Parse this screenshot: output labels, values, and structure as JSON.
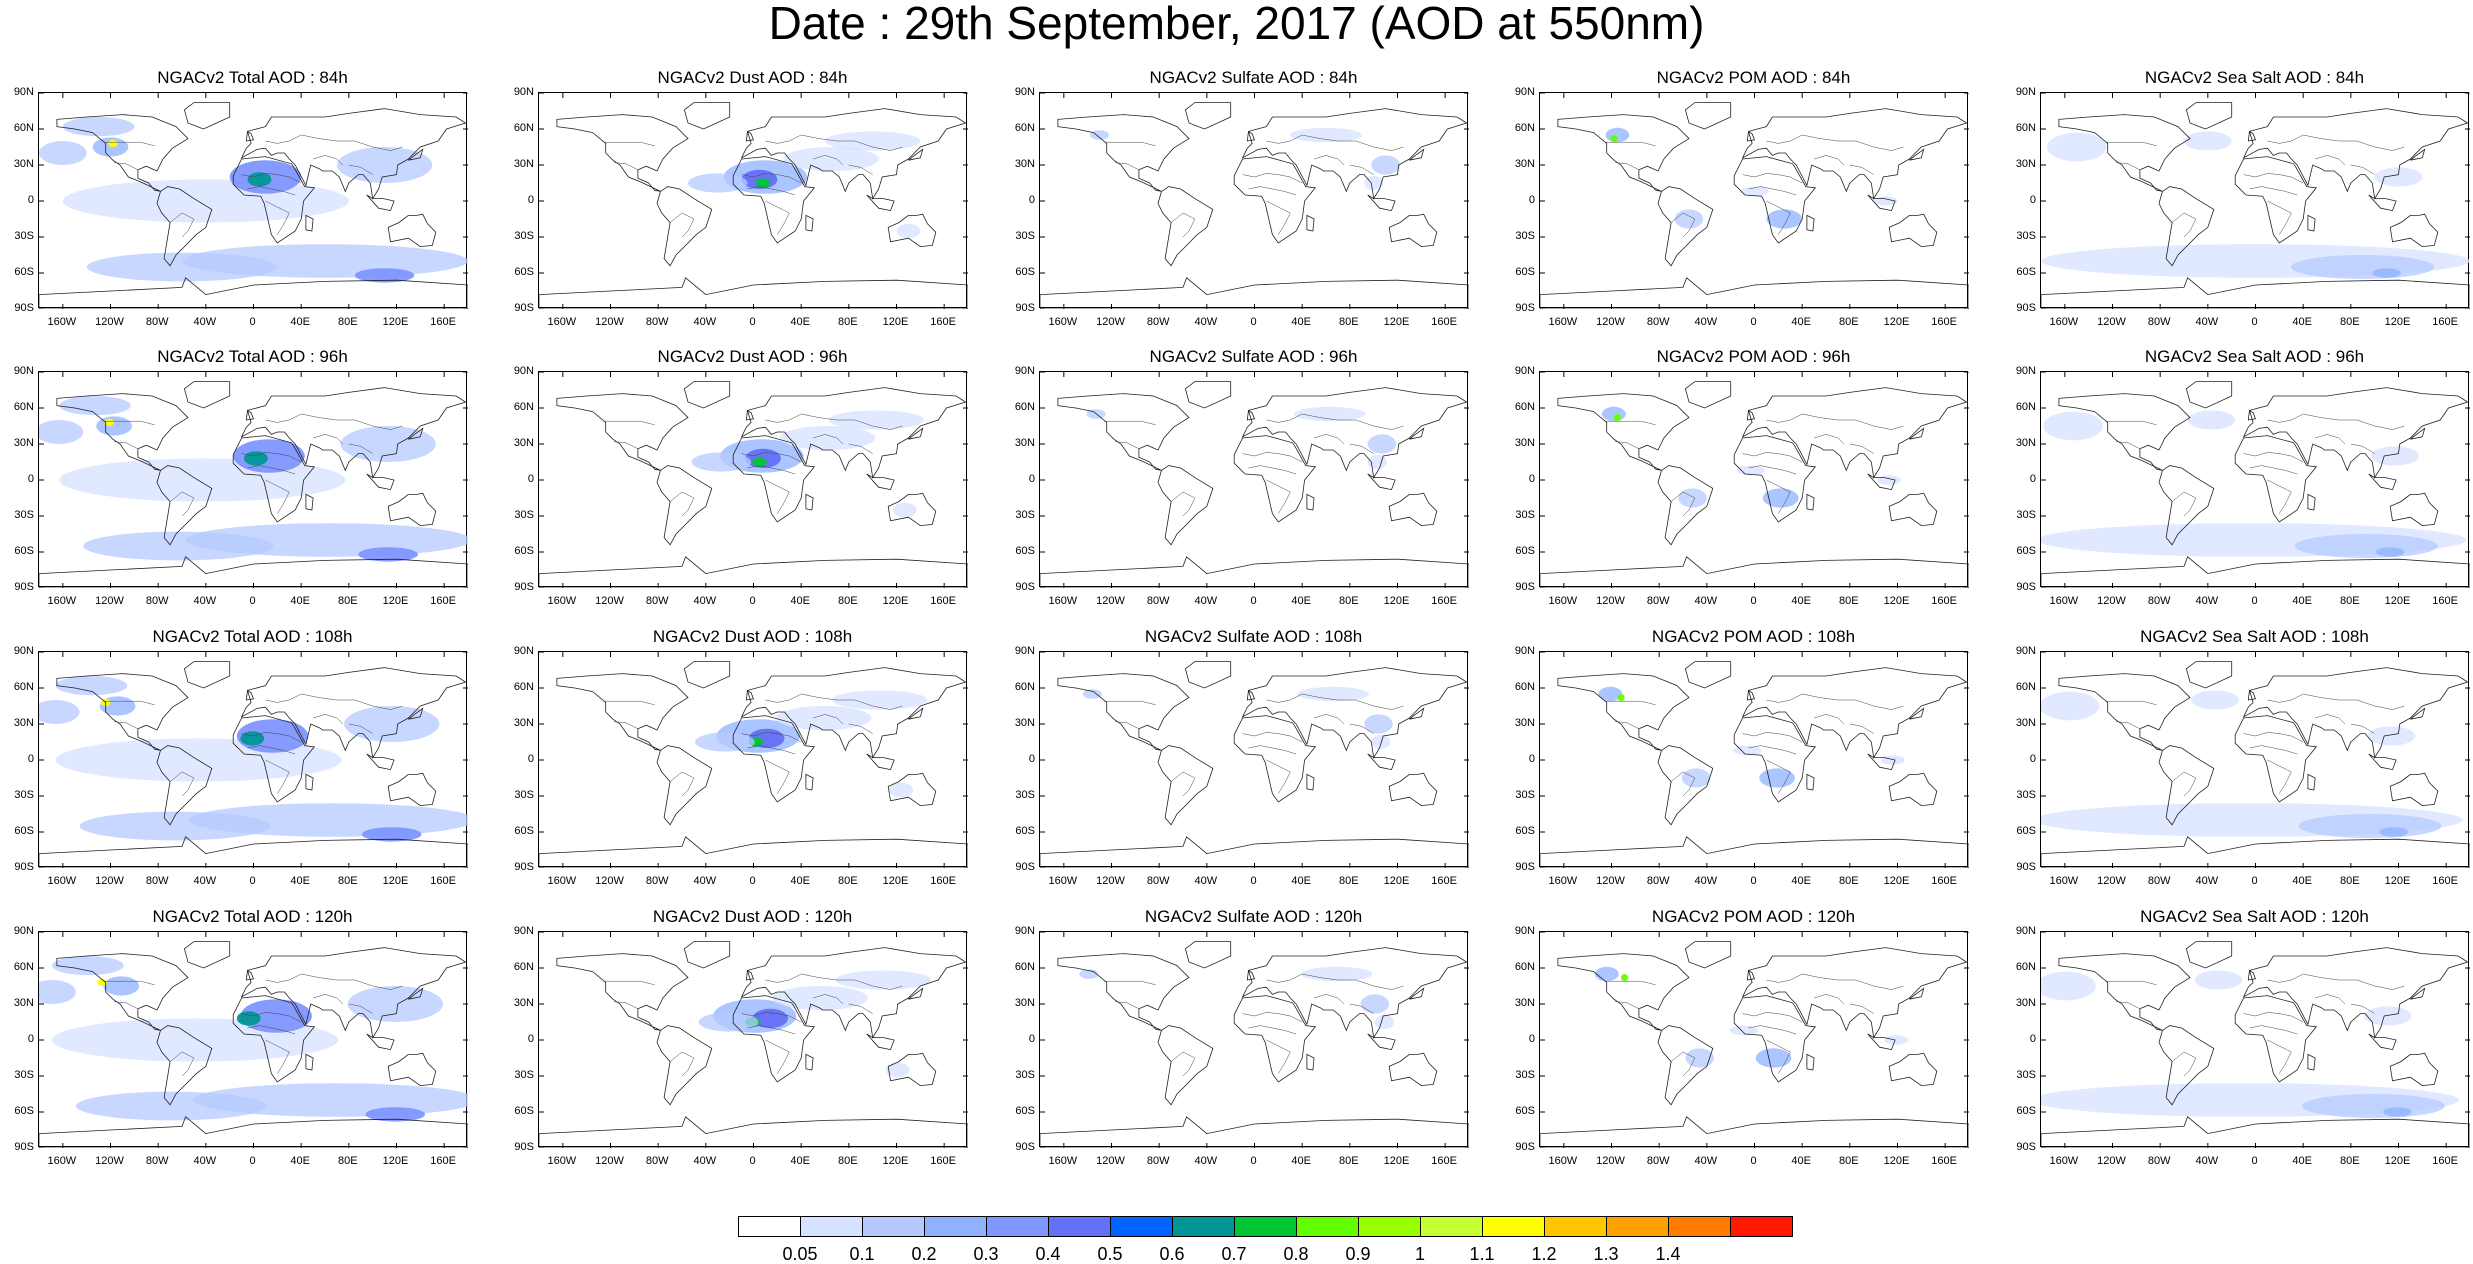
{
  "title": "Date : 29th September, 2017 (AOD at 550nm)",
  "lat_ticks": [
    "90N",
    "60N",
    "30N",
    "0",
    "30S",
    "60S",
    "90S"
  ],
  "lon_ticks": [
    "160W",
    "120W",
    "80W",
    "40W",
    "0",
    "40E",
    "80E",
    "120E",
    "160E"
  ],
  "lon_tick_values": [
    -160,
    -120,
    -80,
    -40,
    0,
    40,
    80,
    120,
    160
  ],
  "lat_tick_values": [
    90,
    60,
    30,
    0,
    -30,
    -60,
    -90
  ],
  "species": [
    "total",
    "dust",
    "sulfate",
    "pom",
    "seasalt"
  ],
  "panels": [
    {
      "title": "NGACv2 Total AOD : 84h",
      "species": "total",
      "hour": 84
    },
    {
      "title": "NGACv2 Dust AOD : 84h",
      "species": "dust",
      "hour": 84
    },
    {
      "title": "NGACv2 Sulfate AOD : 84h",
      "species": "sulfate",
      "hour": 84
    },
    {
      "title": "NGACv2 POM AOD : 84h",
      "species": "pom",
      "hour": 84
    },
    {
      "title": "NGACv2 Sea Salt AOD : 84h",
      "species": "seasalt",
      "hour": 84
    },
    {
      "title": "NGACv2 Total AOD : 96h",
      "species": "total",
      "hour": 96
    },
    {
      "title": "NGACv2 Dust AOD : 96h",
      "species": "dust",
      "hour": 96
    },
    {
      "title": "NGACv2 Sulfate AOD : 96h",
      "species": "sulfate",
      "hour": 96
    },
    {
      "title": "NGACv2 POM AOD : 96h",
      "species": "pom",
      "hour": 96
    },
    {
      "title": "NGACv2 Sea Salt AOD : 96h",
      "species": "seasalt",
      "hour": 96
    },
    {
      "title": "NGACv2 Total AOD : 108h",
      "species": "total",
      "hour": 108
    },
    {
      "title": "NGACv2 Dust AOD : 108h",
      "species": "dust",
      "hour": 108
    },
    {
      "title": "NGACv2 Sulfate AOD : 108h",
      "species": "sulfate",
      "hour": 108
    },
    {
      "title": "NGACv2 POM AOD : 108h",
      "species": "pom",
      "hour": 108
    },
    {
      "title": "NGACv2 Sea Salt AOD : 108h",
      "species": "seasalt",
      "hour": 108
    },
    {
      "title": "NGACv2 Total AOD : 120h",
      "species": "total",
      "hour": 120
    },
    {
      "title": "NGACv2 Dust AOD : 120h",
      "species": "dust",
      "hour": 120
    },
    {
      "title": "NGACv2 Sulfate AOD : 120h",
      "species": "sulfate",
      "hour": 120
    },
    {
      "title": "NGACv2 POM AOD : 120h",
      "species": "pom",
      "hour": 120
    },
    {
      "title": "NGACv2 Sea Salt  AOD : 120h",
      "species": "seasalt",
      "hour": 120
    }
  ],
  "colorbar": {
    "labels": [
      "0.05",
      "0.1",
      "0.2",
      "0.3",
      "0.4",
      "0.5",
      "0.6",
      "0.7",
      "0.8",
      "0.9",
      "1",
      "1.1",
      "1.2",
      "1.3",
      "1.4"
    ],
    "colors": [
      "#ffffff",
      "#d6e2ff",
      "#b5c9ff",
      "#8eb2ff",
      "#7f96ff",
      "#6370f8",
      "#0063ff",
      "#009696",
      "#00c633",
      "#63ff00",
      "#96ff00",
      "#c6ff33",
      "#ffff00",
      "#ffc600",
      "#ffa000",
      "#ff7c00",
      "#ff1900"
    ]
  },
  "aerosol_regions": {
    "total": [
      {
        "lon": -40,
        "lat": 0,
        "rx": 120,
        "ry": 18,
        "level": 1
      },
      {
        "lon": 60,
        "lat": -50,
        "rx": 120,
        "ry": 14,
        "level": 2
      },
      {
        "lon": -60,
        "lat": -55,
        "rx": 80,
        "ry": 12,
        "level": 2
      },
      {
        "lon": 10,
        "lat": 20,
        "rx": 30,
        "ry": 14,
        "level": 4
      },
      {
        "lon": 5,
        "lat": 18,
        "rx": 10,
        "ry": 6,
        "level": 7
      },
      {
        "lon": 110,
        "lat": 30,
        "rx": 40,
        "ry": 15,
        "level": 2
      },
      {
        "lon": -130,
        "lat": 62,
        "rx": 30,
        "ry": 8,
        "level": 2
      },
      {
        "lon": -120,
        "lat": 45,
        "rx": 15,
        "ry": 8,
        "level": 3
      },
      {
        "lon": -118,
        "lat": 48,
        "rx": 4,
        "ry": 3,
        "level": 12
      },
      {
        "lon": 110,
        "lat": -62,
        "rx": 25,
        "ry": 6,
        "level": 4
      },
      {
        "lon": -160,
        "lat": 40,
        "rx": 20,
        "ry": 10,
        "level": 2
      }
    ],
    "dust": [
      {
        "lon": 10,
        "lat": 20,
        "rx": 35,
        "ry": 14,
        "level": 3
      },
      {
        "lon": 5,
        "lat": 18,
        "rx": 15,
        "ry": 8,
        "level": 5
      },
      {
        "lon": 8,
        "lat": 15,
        "rx": 6,
        "ry": 4,
        "level": 8
      },
      {
        "lon": -30,
        "lat": 15,
        "rx": 25,
        "ry": 8,
        "level": 2
      },
      {
        "lon": 65,
        "lat": 35,
        "rx": 40,
        "ry": 10,
        "level": 1
      },
      {
        "lon": 100,
        "lat": 50,
        "rx": 40,
        "ry": 8,
        "level": 1
      },
      {
        "lon": 130,
        "lat": -25,
        "rx": 10,
        "ry": 6,
        "level": 1
      }
    ],
    "sulfate": [
      {
        "lon": 110,
        "lat": 30,
        "rx": 12,
        "ry": 8,
        "level": 2
      },
      {
        "lon": 60,
        "lat": 55,
        "rx": 30,
        "ry": 6,
        "level": 1
      },
      {
        "lon": -130,
        "lat": 55,
        "rx": 8,
        "ry": 4,
        "level": 2
      },
      {
        "lon": 100,
        "lat": 15,
        "rx": 8,
        "ry": 6,
        "level": 1
      }
    ],
    "pom": [
      {
        "lon": 25,
        "lat": -15,
        "rx": 15,
        "ry": 8,
        "level": 3
      },
      {
        "lon": -55,
        "lat": -15,
        "rx": 12,
        "ry": 8,
        "level": 2
      },
      {
        "lon": -115,
        "lat": 55,
        "rx": 10,
        "ry": 6,
        "level": 3
      },
      {
        "lon": -118,
        "lat": 52,
        "rx": 3,
        "ry": 3,
        "level": 9
      },
      {
        "lon": 0,
        "lat": 8,
        "rx": 12,
        "ry": 4,
        "level": 1
      },
      {
        "lon": 110,
        "lat": 0,
        "rx": 10,
        "ry": 4,
        "level": 1
      }
    ],
    "seasalt": [
      {
        "lon": 0,
        "lat": -50,
        "rx": 180,
        "ry": 14,
        "level": 1
      },
      {
        "lon": 90,
        "lat": -55,
        "rx": 60,
        "ry": 10,
        "level": 2
      },
      {
        "lon": -150,
        "lat": 45,
        "rx": 25,
        "ry": 12,
        "level": 1
      },
      {
        "lon": -40,
        "lat": 50,
        "rx": 20,
        "ry": 8,
        "level": 1
      },
      {
        "lon": 120,
        "lat": 20,
        "rx": 20,
        "ry": 8,
        "level": 1
      },
      {
        "lon": 110,
        "lat": -60,
        "rx": 12,
        "ry": 4,
        "level": 3
      }
    ]
  }
}
